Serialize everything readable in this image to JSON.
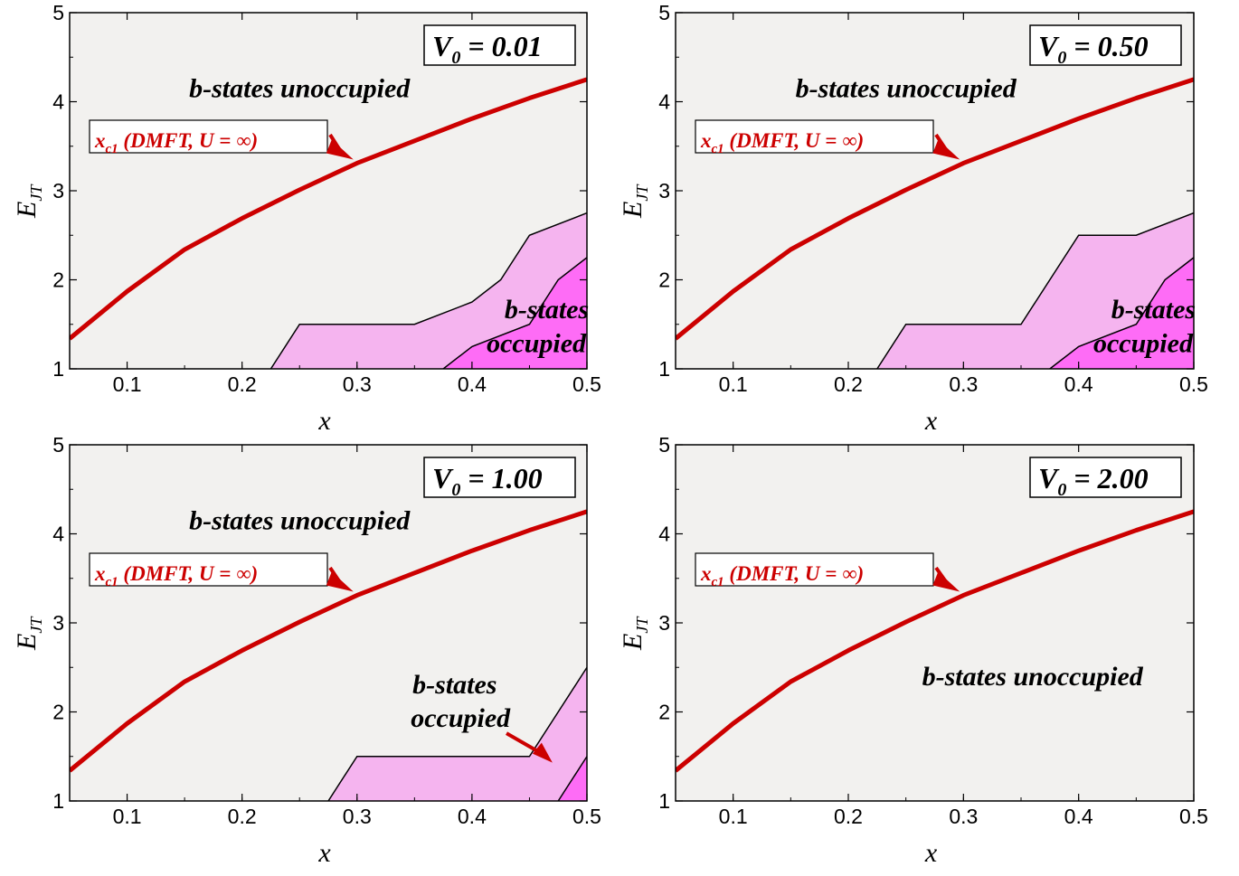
{
  "figure": {
    "background": "#ffffff",
    "plot_background": "#f2f1ef"
  },
  "colors": {
    "curve": "#cc0000",
    "region_light": "#f5b4ef",
    "region_dark": "#fe6cf6",
    "region_edge": "#000000"
  },
  "chart_data": [
    {
      "type": "area",
      "parameter_label": {
        "name": "V",
        "subscript": "0",
        "value": "= 0.01"
      },
      "xlabel": "x",
      "ylabel": {
        "base": "E",
        "subscript": "JT"
      },
      "xlim": [
        0.05,
        0.5
      ],
      "ylim": [
        1,
        5
      ],
      "xticks": [
        "0.1",
        "0.2",
        "0.3",
        "0.4",
        "0.5"
      ],
      "yticks": [
        "1",
        "2",
        "3",
        "4",
        "5"
      ],
      "grid": false,
      "curve": {
        "label": {
          "name": "x",
          "subscript": "c1",
          "text": " (DMFT, U = ∞)"
        },
        "x": [
          0.05,
          0.1,
          0.15,
          0.2,
          0.25,
          0.3,
          0.35,
          0.4,
          0.45,
          0.5
        ],
        "y": [
          1.34,
          1.87,
          2.34,
          2.69,
          3.01,
          3.31,
          3.56,
          3.81,
          4.04,
          4.25
        ]
      },
      "regions": [
        {
          "shade": "light",
          "boundary": {
            "x": [
              0.225,
              0.25,
              0.35,
              0.4,
              0.425,
              0.45,
              0.5
            ],
            "y": [
              1,
              1.5,
              1.5,
              1.75,
              2.0,
              2.5,
              2.75
            ]
          }
        },
        {
          "shade": "dark",
          "boundary": {
            "x": [
              0.375,
              0.4,
              0.45,
              0.475,
              0.5
            ],
            "y": [
              1,
              1.25,
              1.5,
              2.0,
              2.25
            ]
          }
        }
      ],
      "annotations": [
        {
          "text": "b-states unoccupied",
          "at": [
            0.25,
            4.05
          ]
        },
        {
          "text": "b-states",
          "at": [
            0.465,
            1.57
          ]
        },
        {
          "text": "occupied",
          "at": [
            0.456,
            1.19
          ]
        }
      ]
    },
    {
      "type": "area",
      "parameter_label": {
        "name": "V",
        "subscript": "0",
        "value": "= 0.50"
      },
      "xlabel": "x",
      "ylabel": {
        "base": "E",
        "subscript": "JT"
      },
      "xlim": [
        0.05,
        0.5
      ],
      "ylim": [
        1,
        5
      ],
      "xticks": [
        "0.1",
        "0.2",
        "0.3",
        "0.4",
        "0.5"
      ],
      "yticks": [
        "1",
        "2",
        "3",
        "4",
        "5"
      ],
      "grid": false,
      "curve": {
        "label": {
          "name": "x",
          "subscript": "c1",
          "text": " (DMFT, U = ∞)"
        },
        "x": [
          0.05,
          0.1,
          0.15,
          0.2,
          0.25,
          0.3,
          0.35,
          0.4,
          0.45,
          0.5
        ],
        "y": [
          1.34,
          1.87,
          2.34,
          2.69,
          3.01,
          3.31,
          3.56,
          3.81,
          4.04,
          4.25
        ]
      },
      "regions": [
        {
          "shade": "light",
          "boundary": {
            "x": [
              0.225,
              0.25,
              0.35,
              0.4,
              0.45,
              0.5
            ],
            "y": [
              1,
              1.5,
              1.5,
              2.5,
              2.5,
              2.75
            ]
          }
        },
        {
          "shade": "dark",
          "boundary": {
            "x": [
              0.375,
              0.4,
              0.45,
              0.475,
              0.5
            ],
            "y": [
              1,
              1.25,
              1.5,
              2.0,
              2.25
            ]
          }
        }
      ],
      "annotations": [
        {
          "text": "b-states unoccupied",
          "at": [
            0.25,
            4.05
          ]
        },
        {
          "text": "b-states",
          "at": [
            0.465,
            1.57
          ]
        },
        {
          "text": "occupied",
          "at": [
            0.456,
            1.19
          ]
        }
      ]
    },
    {
      "type": "area",
      "parameter_label": {
        "name": "V",
        "subscript": "0",
        "value": "= 1.00"
      },
      "xlabel": "x",
      "ylabel": {
        "base": "E",
        "subscript": "JT"
      },
      "xlim": [
        0.05,
        0.5
      ],
      "ylim": [
        1,
        5
      ],
      "xticks": [
        "0.1",
        "0.2",
        "0.3",
        "0.4",
        "0.5"
      ],
      "yticks": [
        "1",
        "2",
        "3",
        "4",
        "5"
      ],
      "grid": false,
      "curve": {
        "label": {
          "name": "x",
          "subscript": "c1",
          "text": " (DMFT, U = ∞)"
        },
        "x": [
          0.05,
          0.1,
          0.15,
          0.2,
          0.25,
          0.3,
          0.35,
          0.4,
          0.45,
          0.5
        ],
        "y": [
          1.34,
          1.87,
          2.34,
          2.69,
          3.01,
          3.31,
          3.56,
          3.81,
          4.04,
          4.25
        ]
      },
      "regions": [
        {
          "shade": "light",
          "boundary": {
            "x": [
              0.275,
              0.3,
              0.45,
              0.5
            ],
            "y": [
              1,
              1.5,
              1.5,
              2.5
            ]
          }
        },
        {
          "shade": "dark",
          "boundary": {
            "x": [
              0.475,
              0.5
            ],
            "y": [
              1,
              1.5
            ]
          }
        }
      ],
      "annotations": [
        {
          "text": "b-states unoccupied",
          "at": [
            0.25,
            4.05
          ]
        },
        {
          "text": "b-states",
          "at": [
            0.385,
            2.21
          ]
        },
        {
          "text": "occupied",
          "at": [
            0.39,
            1.83
          ]
        }
      ]
    },
    {
      "type": "area",
      "parameter_label": {
        "name": "V",
        "subscript": "0",
        "value": "= 2.00"
      },
      "xlabel": "x",
      "ylabel": {
        "base": "E",
        "subscript": "JT"
      },
      "xlim": [
        0.05,
        0.5
      ],
      "ylim": [
        1,
        5
      ],
      "xticks": [
        "0.1",
        "0.2",
        "0.3",
        "0.4",
        "0.5"
      ],
      "yticks": [
        "1",
        "2",
        "3",
        "4",
        "5"
      ],
      "grid": false,
      "curve": {
        "label": {
          "name": "x",
          "subscript": "c1",
          "text": " (DMFT, U = ∞)"
        },
        "x": [
          0.05,
          0.1,
          0.15,
          0.2,
          0.25,
          0.3,
          0.35,
          0.4,
          0.45,
          0.5
        ],
        "y": [
          1.34,
          1.87,
          2.34,
          2.69,
          3.01,
          3.31,
          3.56,
          3.81,
          4.04,
          4.25
        ]
      },
      "regions": [],
      "annotations": [
        {
          "text": "b-states unoccupied",
          "at": [
            0.36,
            2.3
          ]
        }
      ]
    }
  ]
}
